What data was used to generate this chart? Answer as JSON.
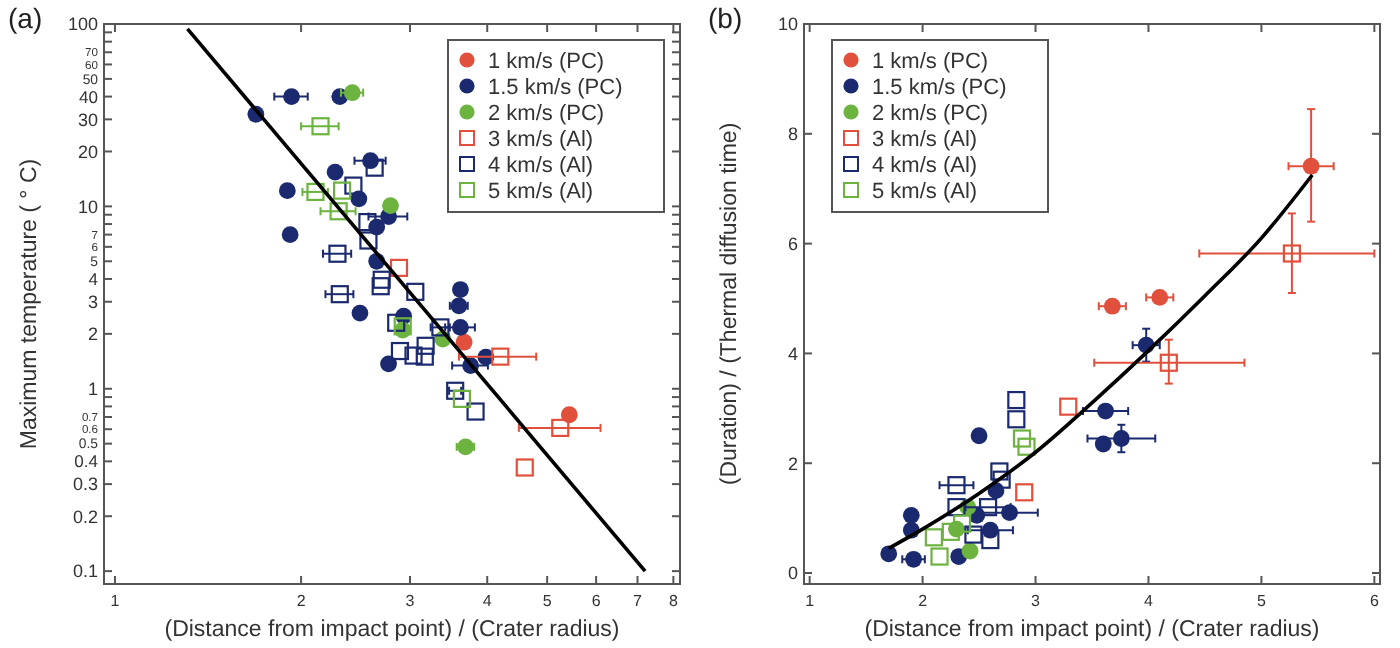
{
  "chart_data": [
    {
      "type": "scatter",
      "title": "(a)",
      "xlabel": "(Distance from impact point) / (Crater radius)",
      "ylabel": "Maximum temperature ( ° C)",
      "log": "xy",
      "xlim": [
        0.96,
        8.2
      ],
      "ylim": [
        0.085,
        100
      ],
      "xticks": [
        1,
        2,
        3,
        4,
        5,
        6,
        7,
        8
      ],
      "yticks": [
        0.1,
        0.2,
        0.3,
        0.4,
        0.5,
        0.6,
        0.7,
        {
          "value": 0.8,
          "label": null
        },
        {
          "value": 0.9,
          "label": null
        },
        1,
        2,
        3,
        4,
        5,
        6,
        7,
        {
          "value": 8,
          "label": null
        },
        {
          "value": 9,
          "label": null
        },
        10,
        20,
        30,
        40,
        50,
        60,
        70,
        {
          "value": 80,
          "label": null
        },
        {
          "value": 90,
          "label": null
        },
        100
      ],
      "legend": "top right",
      "grid": false,
      "series": [
        {
          "name": "1 km/s (PC)",
          "color": "#e0503c",
          "marker": "circle",
          "x": [
            3.67,
            5.43
          ],
          "values": [
            1.8,
            0.72
          ],
          "xerrors": [
            null,
            0.1
          ]
        },
        {
          "name": "1.5 km/s (PC)",
          "color": "#1b2a6e",
          "marker": "circle",
          "x": [
            1.69,
            1.93,
            2.31,
            1.9,
            1.92,
            2.27,
            2.59,
            2.48,
            2.65,
            2.77,
            2.65,
            2.49,
            2.93,
            3.62,
            3.6,
            3.62,
            2.77,
            3.76,
            3.98
          ],
          "values": [
            32,
            40,
            40,
            12.2,
            7,
            15.4,
            17.8,
            11,
            7.7,
            8.8,
            5,
            2.6,
            2.5,
            3.5,
            2.85,
            2.17,
            1.37,
            1.34,
            1.49
          ],
          "xerrors": [
            null,
            0.12,
            null,
            null,
            null,
            null,
            0.15,
            null,
            null,
            0.2,
            null,
            null,
            null,
            null,
            0.12,
            0.2,
            null,
            0.25,
            null
          ]
        },
        {
          "name": "2 km/s (PC)",
          "color": "#6cb33f",
          "marker": "circle",
          "x": [
            2.42,
            2.79,
            2.92,
            3.39,
            3.69
          ],
          "values": [
            42,
            10.1,
            2.1,
            1.87,
            0.48
          ],
          "xerrors": [
            0.1,
            null,
            null,
            null,
            0.12
          ]
        },
        {
          "name": "3 km/s (Al)",
          "color": "#e0503c",
          "marker": "square",
          "x": [
            2.88,
            4.2,
            5.25,
            4.6
          ],
          "values": [
            4.6,
            1.5,
            0.61,
            0.37
          ],
          "xerrors": [
            null,
            [
              3.6,
              4.8
            ],
            [
              4.5,
              6.1
            ],
            null
          ]
        },
        {
          "name": "4 km/s (Al)",
          "color": "#1b2a6e",
          "marker": "square",
          "x": [
            2.43,
            2.63,
            2.56,
            2.57,
            2.29,
            2.7,
            2.69,
            3.06,
            2.31,
            2.85,
            3.36,
            2.89,
            3.04,
            3.17,
            3.18,
            3.55,
            3.83
          ],
          "values": [
            13,
            16.3,
            8.2,
            6.5,
            5.5,
            3.96,
            3.65,
            3.4,
            3.3,
            2.3,
            2.17,
            1.61,
            1.52,
            1.5,
            1.72,
            0.975,
            0.75
          ],
          "xerrors": [
            null,
            null,
            null,
            null,
            0.12,
            null,
            null,
            null,
            0.12,
            null,
            0.12,
            null,
            null,
            null,
            null,
            0.08,
            null
          ]
        },
        {
          "name": "5 km/s (Al)",
          "color": "#6cb33f",
          "marker": "square",
          "x": [
            2.15,
            2.11,
            2.33,
            2.3,
            3.64,
            2.92
          ],
          "values": [
            27.5,
            12,
            12.2,
            9.4,
            0.88,
            2.2
          ],
          "xerrors": [
            0.15,
            0.1,
            null,
            0.15,
            null,
            null
          ]
        },
        {
          "type": "line",
          "color": "#000000",
          "marker": "none",
          "x": [
            1.31,
            7.2
          ],
          "values": [
            94,
            0.1
          ]
        }
      ]
    },
    {
      "type": "scatter",
      "title": "(b)",
      "xlabel": "(Distance from impact point) / (Crater radius)",
      "ylabel": "(Duration) / (Thermal diffusion time)",
      "xlim": [
        0.95,
        6.05
      ],
      "ylim": [
        -0.2,
        10
      ],
      "xticks": [
        1,
        2,
        3,
        4,
        5,
        6
      ],
      "yticks": [
        0,
        2,
        4,
        6,
        8,
        10
      ],
      "legend": "top left",
      "grid": false,
      "series": [
        {
          "name": "1 km/s (PC)",
          "color": "#e0503c",
          "marker": "circle",
          "x": [
            3.68,
            4.1,
            5.44
          ],
          "values": [
            4.86,
            5.02,
            7.41
          ],
          "xerrors": [
            0.12,
            0.12,
            0.2
          ],
          "errors": [
            null,
            null,
            [
              6.4,
              8.45
            ]
          ]
        },
        {
          "name": "1.5 km/s (PC)",
          "color": "#1b2a6e",
          "marker": "circle",
          "x": [
            1.7,
            1.92,
            1.9,
            1.9,
            2.32,
            2.5,
            2.48,
            2.6,
            2.65,
            2.77,
            3.6,
            3.62,
            3.76,
            3.98
          ],
          "values": [
            0.35,
            0.25,
            0.78,
            1.05,
            0.3,
            2.5,
            1.05,
            0.78,
            1.5,
            1.1,
            2.35,
            2.95,
            2.45,
            4.15
          ],
          "xerrors": [
            null,
            0.1,
            null,
            null,
            null,
            null,
            null,
            0.2,
            null,
            0.25,
            null,
            0.2,
            0.3,
            0.12
          ],
          "errors": [
            null,
            null,
            null,
            null,
            null,
            null,
            null,
            null,
            null,
            null,
            null,
            null,
            0.25,
            0.3
          ]
        },
        {
          "name": "2 km/s (PC)",
          "color": "#6cb33f",
          "marker": "circle",
          "x": [
            2.42,
            2.4,
            2.3
          ],
          "values": [
            0.4,
            1.2,
            0.8
          ]
        },
        {
          "name": "3 km/s (Al)",
          "color": "#e0503c",
          "marker": "square",
          "x": [
            3.29,
            2.9,
            4.18,
            5.27
          ],
          "values": [
            3.03,
            1.47,
            3.83,
            5.82
          ],
          "xerrors": [
            null,
            null,
            [
              3.52,
              4.85
            ],
            [
              4.45,
              6.0
            ]
          ],
          "errors": [
            null,
            null,
            [
              3.45,
              4.25
            ],
            [
              5.1,
              6.55
            ]
          ]
        },
        {
          "name": "4 km/s (Al)",
          "color": "#1b2a6e",
          "marker": "square",
          "x": [
            2.3,
            2.3,
            2.58,
            2.68,
            2.7,
            2.83,
            2.83,
            2.45,
            2.6
          ],
          "values": [
            1.6,
            1.2,
            1.2,
            1.85,
            1.7,
            3.15,
            2.8,
            0.7,
            0.6
          ],
          "xerrors": [
            0.15,
            null,
            0.2,
            null,
            null,
            null,
            null,
            null,
            null
          ]
        },
        {
          "name": "5 km/s (Al)",
          "color": "#6cb33f",
          "marker": "square",
          "x": [
            2.15,
            2.1,
            2.92,
            2.88,
            2.25,
            2.35
          ],
          "values": [
            0.3,
            0.65,
            2.3,
            2.45,
            0.75,
            0.9
          ]
        },
        {
          "type": "line",
          "color": "#000000",
          "marker": "none",
          "x": [
            1.7,
            2,
            2.5,
            3,
            3.5,
            4,
            4.5,
            5,
            5.45
          ],
          "values": [
            0.45,
            0.8,
            1.45,
            2.2,
            3.1,
            4.05,
            5.05,
            6.1,
            7.25
          ]
        }
      ]
    }
  ]
}
